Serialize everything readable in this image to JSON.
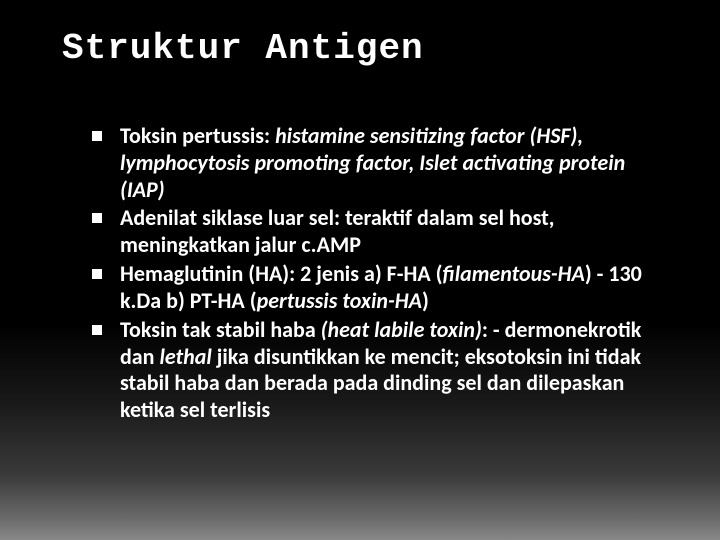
{
  "slide": {
    "title": "Struktur Antigen",
    "title_font": "Consolas monospace",
    "title_fontsize": 36,
    "title_color": "#ffffff",
    "background_gradient": [
      "#000000",
      "#000000",
      "#1a1a1a",
      "#3a3a3a",
      "#6a6a6a",
      "#888888"
    ],
    "bullet_marker": "square",
    "bullet_color": "#ffffff",
    "body_font": "Calibri",
    "body_fontsize": 22,
    "body_fontweight": 600,
    "body_color": "#ffffff",
    "bullets": [
      {
        "runs": [
          {
            "text": "Toksin pertussis: ",
            "italic": false
          },
          {
            "text": "histamine sensitizing factor (HSF), lymphocytosis promoting factor, Islet activating protein (IAP)",
            "italic": true
          }
        ]
      },
      {
        "runs": [
          {
            "text": "Adenilat siklase luar sel: teraktif dalam sel host, meningkatkan jalur c.AMP",
            "italic": false
          }
        ]
      },
      {
        "runs": [
          {
            "text": "Hemaglutinin (HA): 2 jenis a) F-HA (",
            "italic": false
          },
          {
            "text": "filamentous-HA",
            "italic": true
          },
          {
            "text": ") - 130 k.Da b) PT-HA (",
            "italic": false
          },
          {
            "text": "pertussis toxin-HA",
            "italic": true
          },
          {
            "text": ")",
            "italic": false
          }
        ]
      },
      {
        "runs": [
          {
            "text": "Toksin tak stabil haba ",
            "italic": false
          },
          {
            "text": "(heat labile toxin)",
            "italic": true
          },
          {
            "text": ": - dermonekrotik dan ",
            "italic": false
          },
          {
            "text": "lethal",
            "italic": true
          },
          {
            "text": " jika disuntikkan ke mencit; eksotoksin ini tidak stabil haba dan berada pada dinding sel dan dilepaskan ketika sel terlisis",
            "italic": false
          }
        ]
      }
    ]
  }
}
